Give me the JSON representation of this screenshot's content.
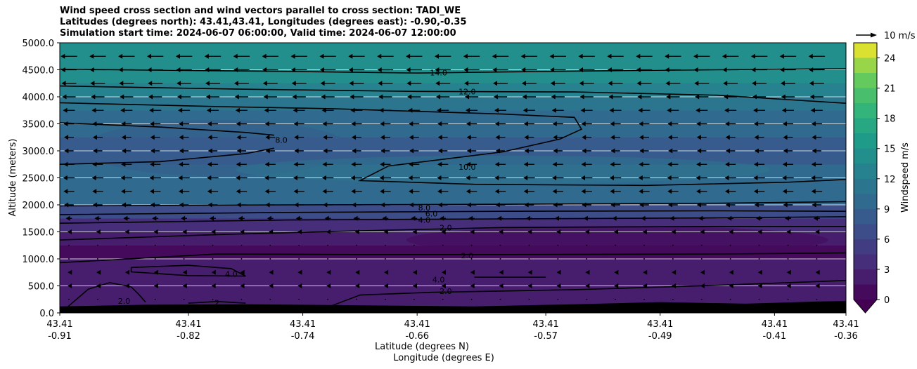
{
  "title": {
    "line1": "Wind speed cross section and wind vectors parallel to cross section: TADI_WE",
    "line2": "Latitudes (degrees north): 43.41,43.41, Longitudes (degrees east): -0.90,-0.35",
    "line3": "Simulation start time: 2024-06-07 06:00:00, Valid time: 2024-06-07 12:00:00"
  },
  "chart_data": {
    "type": "contourf",
    "title": "Wind speed cross section and wind vectors parallel to cross section: TADI_WE",
    "ylabel": "Altitude (meters)",
    "xlabel_lat": "Latitude (degrees N)",
    "xlabel_lon": "Longitude (degrees E)",
    "ylim": [
      0,
      5000
    ],
    "y_ticks": [
      "0.0",
      "500.0",
      "1000.0",
      "1500.0",
      "2000.0",
      "2500.0",
      "3000.0",
      "3500.0",
      "4000.0",
      "4500.0",
      "5000.0"
    ],
    "y_tick_values": [
      0,
      500,
      1000,
      1500,
      2000,
      2500,
      3000,
      3500,
      4000,
      4500,
      5000
    ],
    "x_ticks": [
      {
        "lat": "43.41",
        "lon": "-0.91"
      },
      {
        "lat": "43.41",
        "lon": "-0.82"
      },
      {
        "lat": "43.41",
        "lon": "-0.74"
      },
      {
        "lat": "43.41",
        "lon": "-0.66"
      },
      {
        "lat": "43.41",
        "lon": "-0.57"
      },
      {
        "lat": "43.41",
        "lon": "-0.49"
      },
      {
        "lat": "43.41",
        "lon": "-0.41"
      },
      {
        "lat": "43.41",
        "lon": "-0.36"
      }
    ],
    "x_tick_lons": [
      -0.91,
      -0.82,
      -0.74,
      -0.66,
      -0.57,
      -0.49,
      -0.41,
      -0.36
    ],
    "colorbar": {
      "label": "Windspeed m/s",
      "min": 0,
      "max": 25.5,
      "ticks": [
        "0",
        "3",
        "6",
        "9",
        "12",
        "15",
        "18",
        "21",
        "24"
      ],
      "tick_values": [
        0,
        3,
        6,
        9,
        12,
        15,
        18,
        21,
        24
      ],
      "extend": "min",
      "colormap": "viridis"
    },
    "quiver_key": "10 m/s",
    "wind_profile": {
      "altitudes": [
        0,
        250,
        500,
        750,
        1000,
        1250,
        1500,
        1750,
        2000,
        2250,
        2500,
        2750,
        3000,
        3250,
        3500,
        3750,
        4000,
        4250,
        4500,
        4750,
        5000
      ],
      "speeds": [
        1.2,
        1.8,
        2.3,
        2.2,
        1.6,
        1.3,
        2.6,
        5.5,
        8.5,
        9.6,
        10.2,
        9.4,
        8.3,
        8.7,
        9.4,
        10.6,
        12.0,
        13.1,
        14.0,
        14.6,
        15.2
      ],
      "direction": "westward (leftward vectors)"
    },
    "contour_levels": [
      "2.0",
      "4.0",
      "6.0",
      "8.0",
      "10.0",
      "12.0",
      "14.0"
    ],
    "contour_labels": [
      {
        "text": "14.0",
        "lon": -0.645,
        "alt": 4450
      },
      {
        "text": "12.0",
        "lon": -0.625,
        "alt": 4100
      },
      {
        "text": "10.0",
        "lon": -0.625,
        "alt": 2700
      },
      {
        "text": "8.0",
        "lon": -0.755,
        "alt": 3200
      },
      {
        "text": "8.0",
        "lon": -0.655,
        "alt": 1950
      },
      {
        "text": "6.0",
        "lon": -0.65,
        "alt": 1840
      },
      {
        "text": "4.0",
        "lon": -0.655,
        "alt": 1720
      },
      {
        "text": "2.0",
        "lon": -0.64,
        "alt": 1580
      },
      {
        "text": "2.0",
        "lon": -0.625,
        "alt": 1060
      },
      {
        "text": "4.0",
        "lon": -0.79,
        "alt": 720
      },
      {
        "text": "4.0",
        "lon": -0.645,
        "alt": 620
      },
      {
        "text": "2.0",
        "lon": -0.64,
        "alt": 400
      },
      {
        "text": "2.0",
        "lon": -0.865,
        "alt": 220
      },
      {
        "text": "2",
        "lon": -0.8,
        "alt": 190
      }
    ]
  }
}
